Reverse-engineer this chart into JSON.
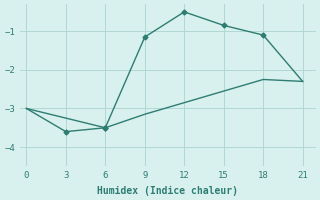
{
  "xlabel": "Humidex (Indice chaleur)",
  "line1_x": [
    0,
    6,
    9,
    12,
    15,
    18,
    21
  ],
  "line1_y": [
    -3.0,
    -3.5,
    -1.15,
    -0.5,
    -0.85,
    -1.1,
    -2.3
  ],
  "line2_x": [
    0,
    3,
    6,
    9,
    12,
    15,
    18,
    21
  ],
  "line2_y": [
    -3.0,
    -3.6,
    -3.5,
    -3.15,
    -2.85,
    -2.55,
    -2.25,
    -2.3
  ],
  "line_color": "#2e7d72",
  "bg_color": "#d8f0ee",
  "grid_color": "#b0d8d4",
  "xlim": [
    -0.5,
    22
  ],
  "ylim": [
    -4.5,
    -0.3
  ],
  "xticks": [
    0,
    3,
    6,
    9,
    12,
    15,
    18,
    21
  ],
  "yticks": [
    -4,
    -3,
    -2,
    -1
  ],
  "marker": "D",
  "markersize": 2.5,
  "linewidth": 1.0,
  "tick_fontsize": 6.5,
  "xlabel_fontsize": 7.0
}
